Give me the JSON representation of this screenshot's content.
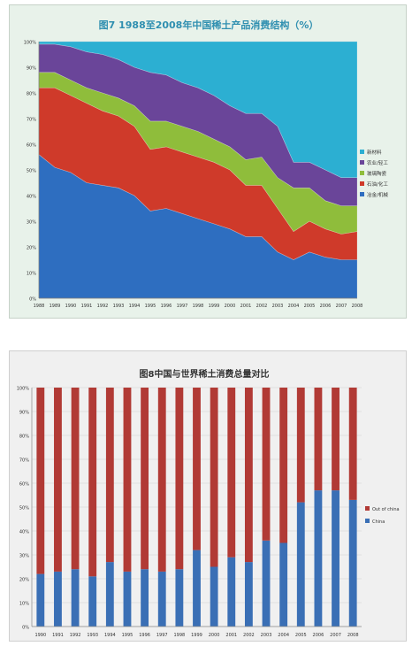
{
  "chart_data": [
    {
      "type": "area",
      "stacked": true,
      "title": "图7  1988至2008年中国稀土产品消费结构（%）",
      "x": [
        "1988",
        "1989",
        "1990",
        "1991",
        "1992",
        "1993",
        "1994",
        "1995",
        "1996",
        "1997",
        "1998",
        "1999",
        "2000",
        "2001",
        "2002",
        "2003",
        "2004",
        "2005",
        "2006",
        "2007",
        "2008"
      ],
      "y_ticks": [
        "0%",
        "10%",
        "20%",
        "30%",
        "40%",
        "50%",
        "60%",
        "70%",
        "80%",
        "90%",
        "100%"
      ],
      "ylim": [
        0,
        100
      ],
      "series": [
        {
          "name": "冶金/机械",
          "color": "#2e6ec0",
          "values": [
            56,
            51,
            49,
            45,
            44,
            43,
            40,
            34,
            35,
            33,
            31,
            29,
            27,
            24,
            24,
            18,
            15,
            18,
            16,
            15,
            15
          ]
        },
        {
          "name": "石油/化工",
          "color": "#cf3a2a",
          "values": [
            26,
            31,
            30,
            31,
            29,
            28,
            27,
            24,
            24,
            24,
            24,
            24,
            23,
            20,
            20,
            17,
            11,
            12,
            11,
            10,
            11
          ]
        },
        {
          "name": "玻璃陶瓷",
          "color": "#8fbd3b",
          "values": [
            6,
            6,
            6,
            6,
            7,
            7,
            8,
            11,
            10,
            10,
            10,
            9,
            9,
            10,
            11,
            12,
            17,
            13,
            11,
            11,
            10
          ]
        },
        {
          "name": "农业/轻工",
          "color": "#6a4599",
          "values": [
            11,
            11,
            13,
            14,
            15,
            15,
            15,
            19,
            18,
            17,
            17,
            17,
            16,
            18,
            17,
            20,
            10,
            10,
            12,
            11,
            11
          ]
        },
        {
          "name": "新材料",
          "color": "#2cafd2",
          "values": [
            1,
            1,
            2,
            4,
            5,
            7,
            10,
            12,
            13,
            16,
            18,
            21,
            25,
            28,
            28,
            33,
            47,
            47,
            50,
            53,
            53
          ]
        }
      ],
      "grid": true,
      "legend_position": "right"
    },
    {
      "type": "bar",
      "stacked": true,
      "title": "图8中国与世界稀土消费总量对比",
      "categories": [
        "1990",
        "1991",
        "1992",
        "1993",
        "1994",
        "1995",
        "1996",
        "1997",
        "1998",
        "1999",
        "2000",
        "2001",
        "2002",
        "2003",
        "2004",
        "2005",
        "2006",
        "2007",
        "2008"
      ],
      "y_ticks": [
        "0%",
        "10%",
        "20%",
        "30%",
        "40%",
        "50%",
        "60%",
        "70%",
        "80%",
        "90%",
        "100%"
      ],
      "ylim": [
        0,
        100
      ],
      "series": [
        {
          "name": "China",
          "color": "#3a6fb5",
          "values": [
            22,
            23,
            24,
            21,
            27,
            23,
            24,
            23,
            24,
            32,
            25,
            29,
            27,
            36,
            35,
            52,
            57,
            57,
            53
          ]
        },
        {
          "name": "Out of china",
          "color": "#b13a35",
          "values": [
            78,
            77,
            76,
            79,
            73,
            77,
            76,
            77,
            76,
            68,
            75,
            71,
            73,
            64,
            65,
            48,
            43,
            43,
            47
          ]
        }
      ],
      "grid": true,
      "legend_position": "right"
    }
  ]
}
